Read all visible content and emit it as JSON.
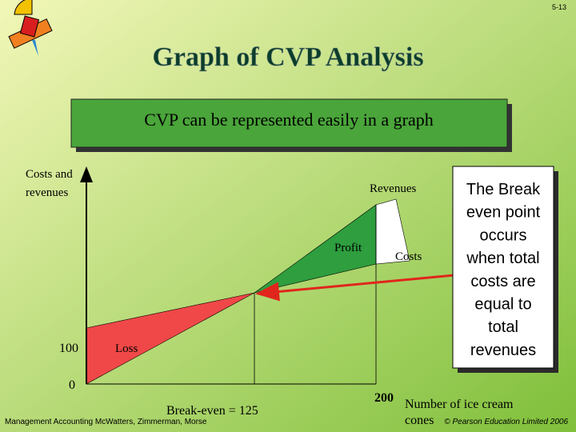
{
  "slide_number": "5-13",
  "title": "Graph of CVP Analysis",
  "subtitle_box": "CVP can be represented easily in a graph",
  "graph": {
    "y_axis_label_1": "Costs and",
    "y_axis_label_2": "revenues",
    "x_axis_label_1": "Number of ice cream",
    "x_axis_label_2": "cones",
    "revenues": "Revenues",
    "costs": "Costs",
    "profit": "Profit",
    "loss": "Loss",
    "y_fixed": 100,
    "y_zero": 0,
    "break_even": "Break-even = 125",
    "x_end": 200
  },
  "callout": [
    "The Break",
    "even point",
    "occurs",
    "when total",
    "costs are",
    "equal to",
    "total",
    "revenues"
  ],
  "footer": {
    "left": "Management Accounting McWatters, Zimmerman, Morse",
    "right": "© Pearson Education Limited 2006"
  }
}
